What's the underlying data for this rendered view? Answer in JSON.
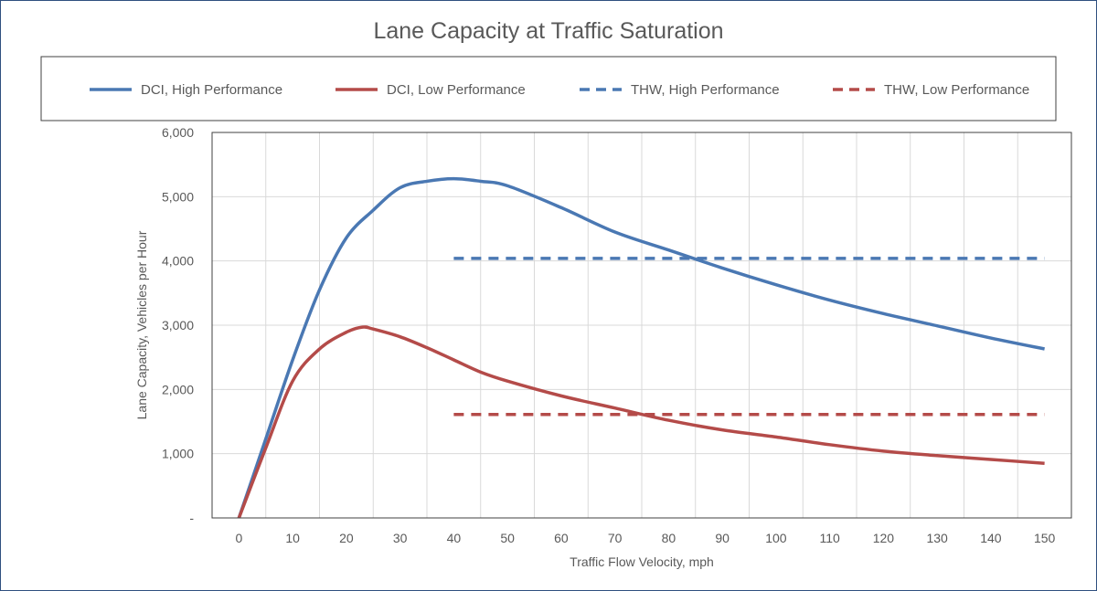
{
  "chart_data": {
    "type": "line",
    "title": "Lane Capacity at Traffic Saturation",
    "xlabel": "Traffic Flow Velocity, mph",
    "ylabel": "Lane Capacity, Vehicles per Hour",
    "xlim": [
      -5,
      155
    ],
    "ylim": [
      0,
      6000
    ],
    "x_ticks": [
      "0",
      "10",
      "20",
      "30",
      "40",
      "50",
      "60",
      "70",
      "80",
      "90",
      "100",
      "110",
      "120",
      "130",
      "140",
      "150"
    ],
    "y_ticks": [
      "-",
      "1,000",
      "2,000",
      "3,000",
      "4,000",
      "5,000",
      "6,000"
    ],
    "grid": true,
    "legend_placement": "top",
    "series": [
      {
        "name": "DCI, High Performance",
        "color": "#4a78b3",
        "dash": false,
        "x": [
          0,
          5,
          10,
          15,
          20,
          25,
          30,
          35,
          40,
          45,
          50,
          60,
          70,
          80,
          90,
          100,
          110,
          120,
          130,
          140,
          150
        ],
        "y": [
          0,
          1230,
          2460,
          3550,
          4360,
          4790,
          5140,
          5240,
          5280,
          5240,
          5170,
          4830,
          4450,
          4170,
          3890,
          3630,
          3390,
          3180,
          2990,
          2800,
          2630
        ]
      },
      {
        "name": "DCI, Low Performance",
        "color": "#b44b49",
        "dash": false,
        "x": [
          0,
          5,
          10,
          15,
          20,
          23,
          25,
          30,
          35,
          40,
          45,
          50,
          60,
          70,
          80,
          90,
          100,
          110,
          120,
          130,
          140,
          150
        ],
        "y": [
          0,
          1090,
          2130,
          2630,
          2890,
          2970,
          2940,
          2820,
          2650,
          2460,
          2270,
          2130,
          1900,
          1710,
          1520,
          1370,
          1260,
          1140,
          1040,
          970,
          910,
          850
        ]
      },
      {
        "name": "THW, High Performance",
        "color": "#4a78b3",
        "dash": true,
        "x": [
          40,
          150
        ],
        "y": [
          4040,
          4040
        ]
      },
      {
        "name": "THW, Low Performance",
        "color": "#b44b49",
        "dash": true,
        "x": [
          40,
          150
        ],
        "y": [
          1610,
          1610
        ]
      }
    ]
  }
}
